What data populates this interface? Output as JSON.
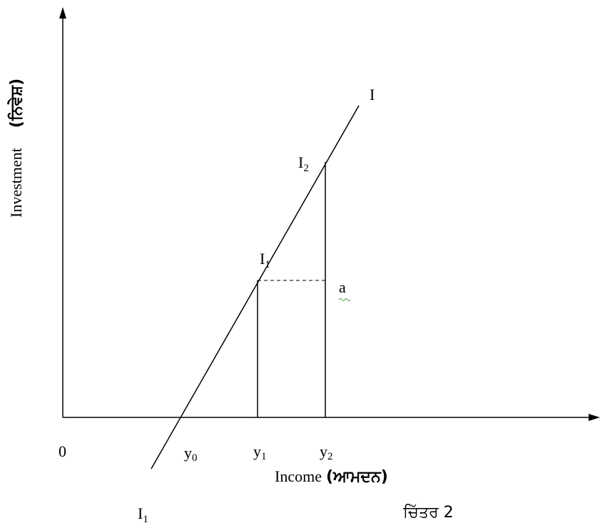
{
  "labels": {
    "line": "I",
    "i2": {
      "base": "I",
      "sub": "2"
    },
    "i1": {
      "base": "I",
      "sub": "1"
    },
    "a": "a",
    "origin": "0",
    "y0": {
      "base": "y",
      "sub": "0"
    },
    "y1": {
      "base": "y",
      "sub": "1"
    },
    "y2": {
      "base": "y",
      "sub": "2"
    },
    "x_axis": {
      "english": "Income",
      "punjabi": "(ਆਮਦਨ)"
    },
    "y_axis": {
      "english": "Investment",
      "punjabi": "(ਨਿਵੇਸ਼)"
    },
    "bottom_i1": {
      "base": "I",
      "sub": "1"
    },
    "caption": "ਚਿੱਤਰ 2"
  }
}
